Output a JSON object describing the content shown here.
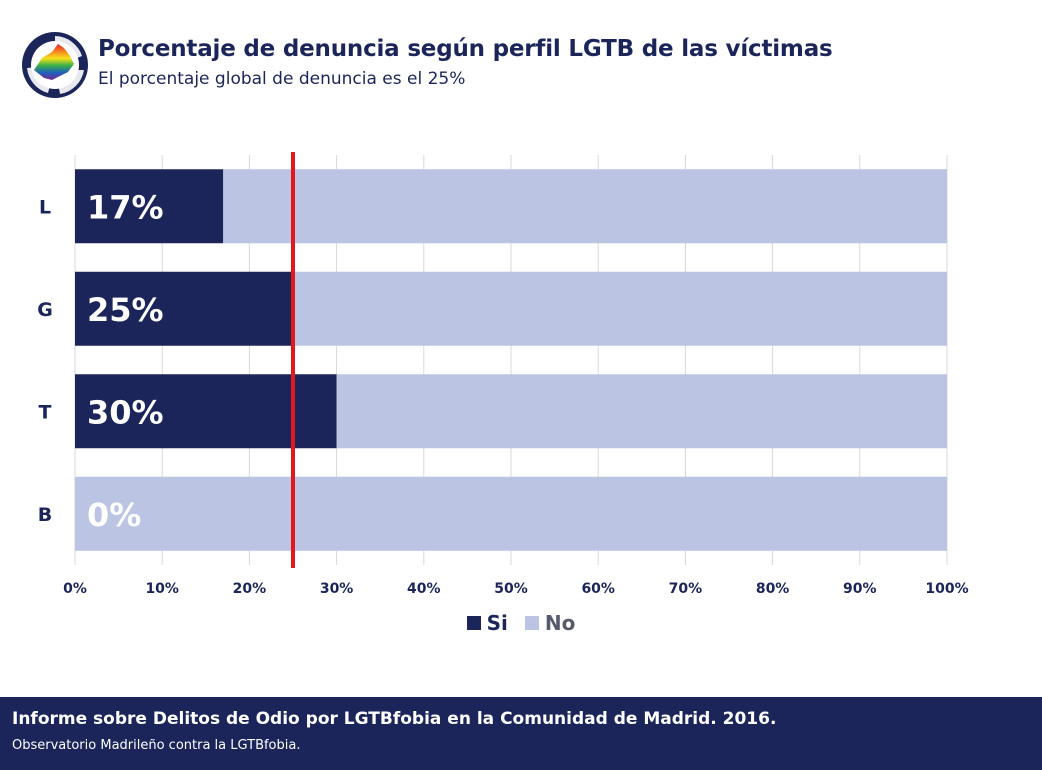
{
  "header": {
    "title": "Porcentaje de denuncia según perfil LGTB de las víctimas",
    "subtitle": "El porcentaje global de denuncia es el 25%"
  },
  "colors": {
    "navy": "#1b2559",
    "lavender": "#bcc4e3",
    "red": "#e3171e",
    "grid": "#d9d9d9"
  },
  "chart_data": {
    "type": "bar",
    "orientation": "horizontal",
    "stacked": true,
    "percent": true,
    "categories": [
      "L",
      "G",
      "T",
      "B"
    ],
    "series": [
      {
        "name": "Si",
        "values": [
          17,
          25,
          30,
          0
        ],
        "color": "#1b2559"
      },
      {
        "name": "No",
        "values": [
          83,
          75,
          70,
          100
        ],
        "color": "#bcc4e3"
      }
    ],
    "data_labels": [
      "17%",
      "25%",
      "30%",
      "0%"
    ],
    "x_ticks": [
      "0%",
      "10%",
      "20%",
      "30%",
      "40%",
      "50%",
      "60%",
      "70%",
      "80%",
      "90%",
      "100%"
    ],
    "xlim": [
      0,
      100
    ],
    "reference_line": {
      "value": 25,
      "color": "#e3171e"
    },
    "grid": true,
    "legend_position": "bottom"
  },
  "legend": [
    {
      "label": "Si",
      "color": "#1b2559"
    },
    {
      "label": "No",
      "color": "#bcc4e3"
    }
  ],
  "footer": {
    "title": "Informe sobre Delitos de Odio por LGTBfobia en la Comunidad de Madrid. 2016.",
    "subtitle": "Observatorio Madrileño contra la LGTBfobia."
  }
}
